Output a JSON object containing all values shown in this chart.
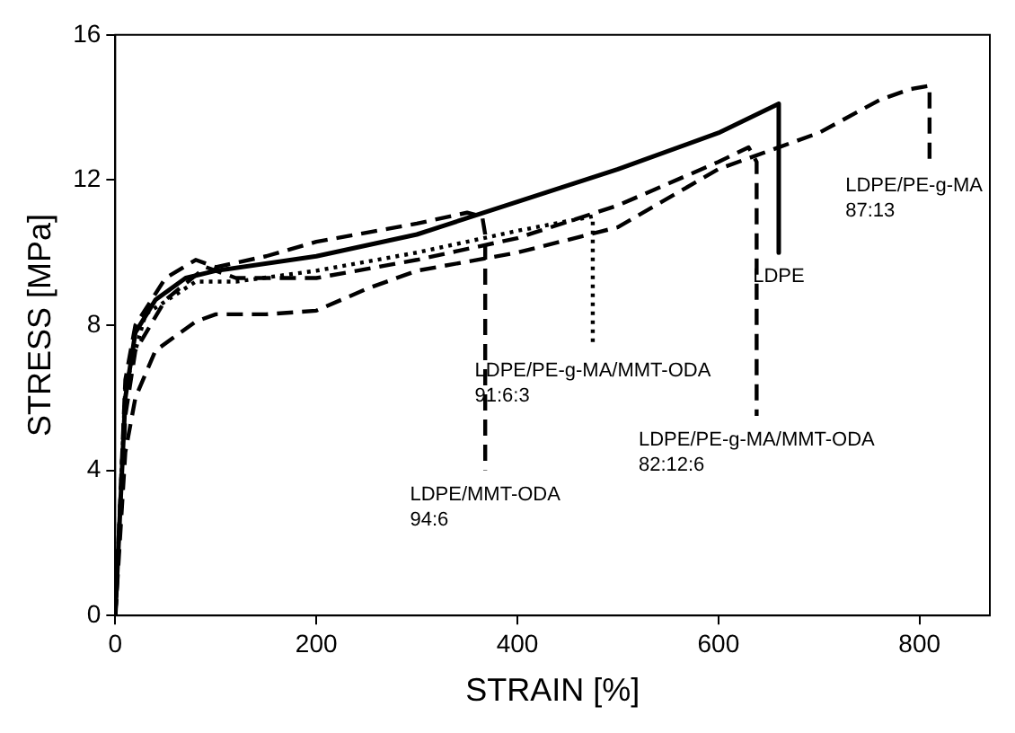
{
  "chart_data": {
    "type": "line",
    "xlabel": "STRAIN [%]",
    "ylabel": "STRESS [MPa]",
    "xlim": [
      0,
      870
    ],
    "xticks": [
      0,
      200,
      400,
      600,
      800
    ],
    "ylim": [
      0,
      16
    ],
    "yticks": [
      0,
      4,
      8,
      12,
      16
    ],
    "grid": false,
    "legend": false,
    "marker": "none",
    "series": [
      {
        "name": "LDPE",
        "color": "#000000",
        "line_style": "solid",
        "x": [
          0,
          10,
          20,
          40,
          70,
          100,
          200,
          300,
          400,
          500,
          600,
          660,
          660
        ],
        "values": [
          0,
          6,
          7.8,
          8.7,
          9.3,
          9.5,
          9.9,
          10.5,
          11.4,
          12.3,
          13.3,
          14.1,
          10
        ]
      },
      {
        "name": "LDPE/MMT-ODA\n94:6",
        "color": "#000000",
        "line_style": "dashed",
        "x": [
          0,
          10,
          20,
          50,
          80,
          100,
          150,
          200,
          300,
          350,
          365,
          368,
          368
        ],
        "values": [
          0,
          6.5,
          8,
          9.3,
          9.8,
          9.6,
          9.9,
          10.3,
          10.8,
          11.1,
          11,
          10.5,
          4
        ]
      },
      {
        "name": "LDPE/PE-g-MA/MMT-ODA\n91:6:3",
        "color": "#000000",
        "line_style": "dotted",
        "x": [
          0,
          10,
          30,
          80,
          120,
          200,
          300,
          400,
          475,
          475
        ],
        "values": [
          0,
          6.3,
          8.3,
          9.2,
          9.2,
          9.5,
          10,
          10.6,
          11,
          7.4
        ]
      },
      {
        "name": "LDPE/PE-g-MA/MMT-ODA\n82:12:6",
        "color": "#000000",
        "line_style": "dashed",
        "x": [
          0,
          10,
          20,
          50,
          90,
          120,
          200,
          300,
          400,
          500,
          600,
          630,
          638,
          638
        ],
        "values": [
          0,
          5.5,
          7.3,
          8.7,
          9.6,
          9.3,
          9.3,
          9.8,
          10.4,
          11.3,
          12.5,
          12.9,
          12.5,
          5.5
        ]
      },
      {
        "name": "LDPE/PE-g-MA\n87:13",
        "color": "#000000",
        "line_style": "dashed",
        "x": [
          0,
          10,
          20,
          40,
          80,
          100,
          150,
          200,
          250,
          300,
          400,
          500,
          600,
          700,
          760,
          790,
          810,
          810
        ],
        "values": [
          0,
          4.5,
          6,
          7.3,
          8.1,
          8.3,
          8.3,
          8.4,
          9,
          9.5,
          10,
          10.7,
          12.3,
          13.3,
          14.2,
          14.5,
          14.6,
          12.5
        ]
      }
    ]
  }
}
